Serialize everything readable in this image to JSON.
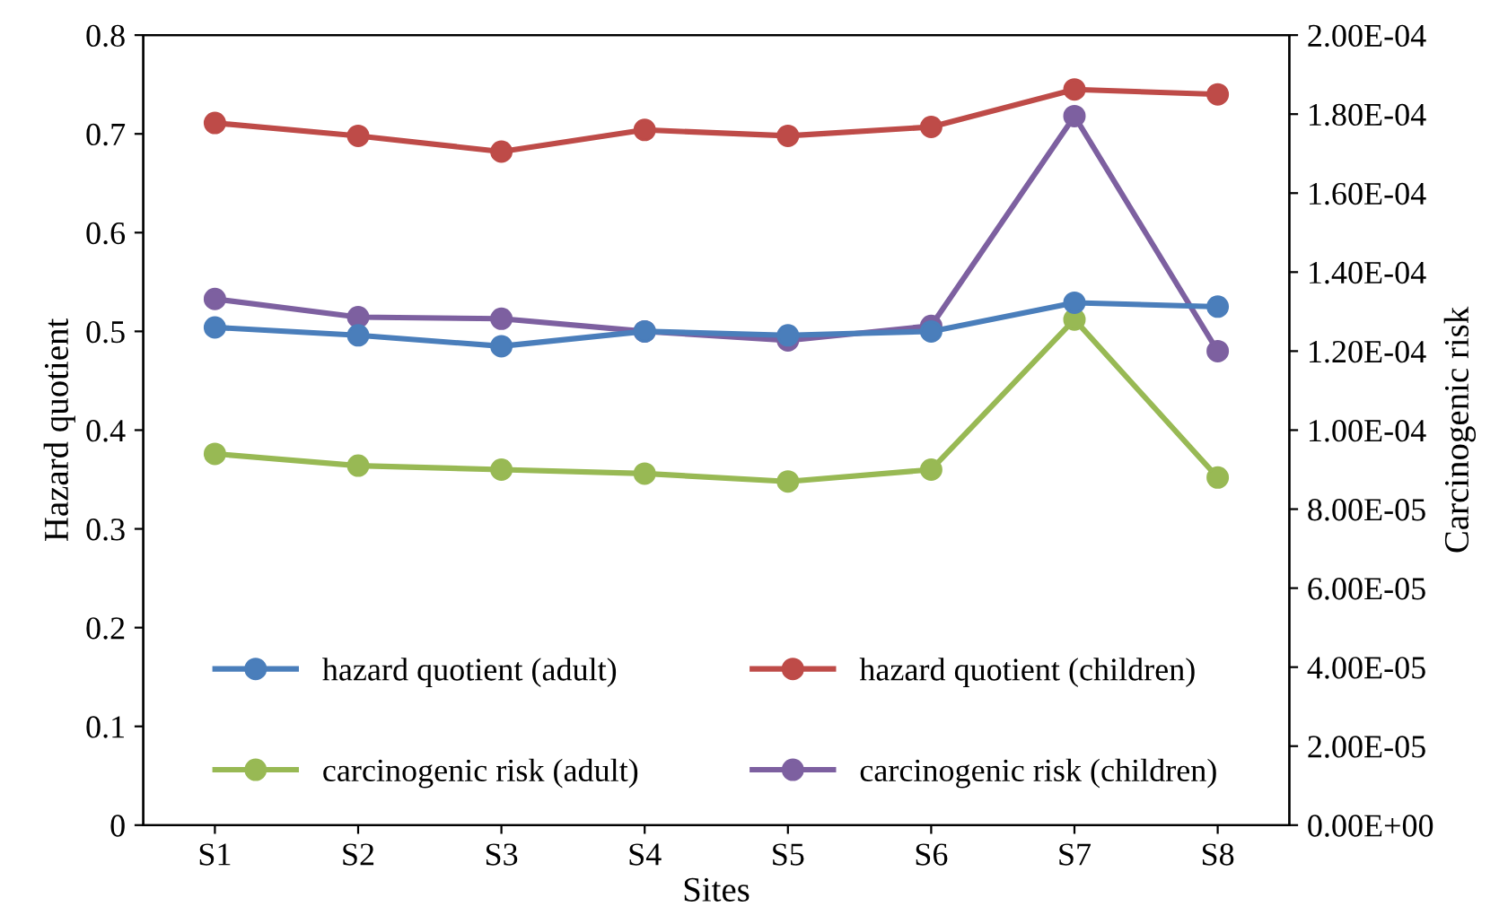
{
  "chart_data": {
    "type": "line",
    "xlabel": "Sites",
    "ylabel": "Hazard quotient",
    "y2label": "Carcinogenic risk",
    "categories": [
      "S1",
      "S2",
      "S3",
      "S4",
      "S5",
      "S6",
      "S7",
      "S8"
    ],
    "series": [
      {
        "name": "hazard quotient (adult)",
        "color": "#4a7ebb",
        "values": [
          0.504,
          0.496,
          0.485,
          0.5,
          0.496,
          0.5,
          0.529,
          0.525
        ]
      },
      {
        "name": "hazard quotient (children)",
        "color": "#be4b48",
        "values": [
          0.711,
          0.698,
          0.682,
          0.704,
          0.698,
          0.707,
          0.745,
          0.74
        ]
      },
      {
        "name": "carcinogenic risk (adult)",
        "color": "#98b954",
        "axis": "y2",
        "values": [
          9.4e-05,
          9.1e-05,
          9e-05,
          8.9e-05,
          8.7e-05,
          9e-05,
          0.000128,
          8.8e-05
        ]
      },
      {
        "name": "carcinogenic risk (children)",
        "color": "#7d60a0",
        "axis": "y2",
        "values": [
          0.0001332,
          0.0001286,
          0.0001282,
          0.000125,
          0.0001227,
          0.0001264,
          0.0001795,
          0.00012
        ]
      }
    ],
    "ylim": [
      0,
      0.8
    ],
    "yticks": [
      0,
      0.1,
      0.2,
      0.3,
      0.4,
      0.5,
      0.6,
      0.7,
      0.8
    ],
    "y2lim": [
      0,
      0.0002
    ],
    "y2ticks": [
      {
        "value": 0,
        "label": "0.00E+00"
      },
      {
        "value": 2e-05,
        "label": "2.00E-05"
      },
      {
        "value": 4e-05,
        "label": "4.00E-05"
      },
      {
        "value": 6e-05,
        "label": "6.00E-05"
      },
      {
        "value": 8e-05,
        "label": "8.00E-05"
      },
      {
        "value": 0.0001,
        "label": "1.00E-04"
      },
      {
        "value": 0.00012,
        "label": "1.20E-04"
      },
      {
        "value": 0.00014,
        "label": "1.40E-04"
      },
      {
        "value": 0.00016,
        "label": "1.60E-04"
      },
      {
        "value": 0.00018,
        "label": "1.80E-04"
      },
      {
        "value": 0.0002,
        "label": "2.00E-04"
      }
    ],
    "grid": false,
    "legend": "bottom",
    "marker": "circle",
    "line_style": "solid"
  }
}
